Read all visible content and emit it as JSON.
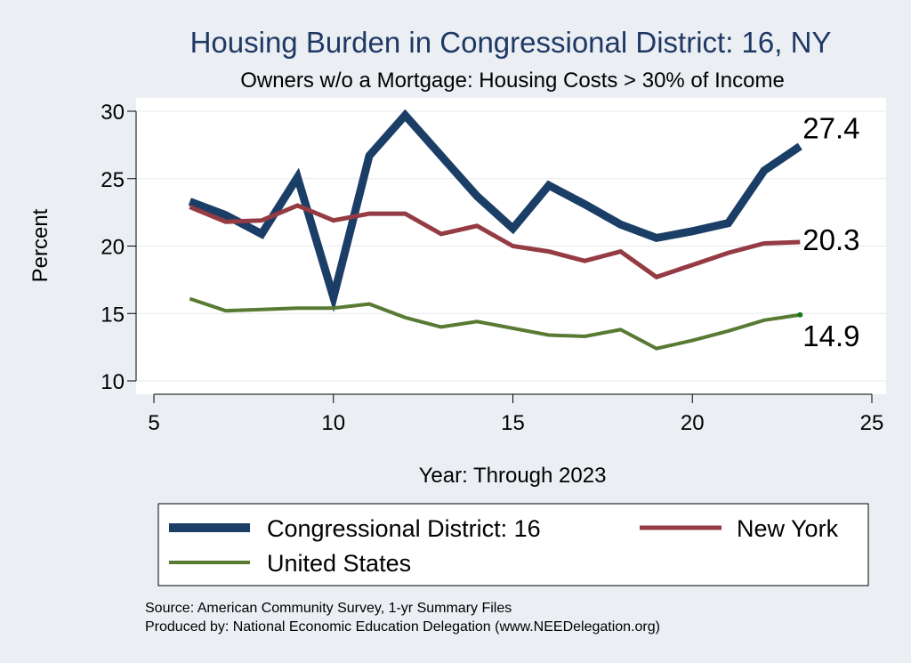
{
  "chart_data": {
    "type": "line",
    "title": "Housing Burden in Congressional District:  16, NY",
    "subtitle": "Owners w/o a Mortgage: Housing Costs > 30% of Income",
    "xlabel": "Year: Through 2023",
    "ylabel": "Percent",
    "xlim": [
      5,
      25
    ],
    "ylim": [
      10,
      30
    ],
    "xticks": [
      5,
      10,
      15,
      20,
      25
    ],
    "yticks": [
      10,
      15,
      20,
      25,
      30
    ],
    "grid": true,
    "legend_position": "bottom",
    "series": [
      {
        "name": "Congressional District:  16",
        "color": "#1b3e66",
        "x": [
          6,
          7,
          8,
          9,
          10,
          11,
          12,
          13,
          14,
          15,
          16,
          17,
          18,
          19,
          20,
          21,
          22,
          23
        ],
        "values": [
          23.3,
          22.3,
          20.9,
          25.1,
          16.2,
          26.7,
          29.7,
          26.7,
          23.7,
          21.3,
          24.5,
          23.1,
          21.6,
          20.6,
          21.1,
          21.7,
          25.6,
          27.4
        ],
        "end_label": "27.4"
      },
      {
        "name": "New York",
        "color": "#953b43",
        "x": [
          6,
          7,
          8,
          9,
          10,
          11,
          12,
          13,
          14,
          15,
          16,
          17,
          18,
          19,
          20,
          21,
          22,
          23
        ],
        "values": [
          22.9,
          21.8,
          21.9,
          23.0,
          21.9,
          22.4,
          22.4,
          20.9,
          21.5,
          20.0,
          19.6,
          18.9,
          19.6,
          17.7,
          18.6,
          19.5,
          20.2,
          20.3
        ],
        "end_label": "20.3"
      },
      {
        "name": "United States",
        "color": "#587a33",
        "x": [
          6,
          7,
          8,
          9,
          10,
          11,
          12,
          13,
          14,
          15,
          16,
          17,
          18,
          19,
          20,
          21,
          22,
          23
        ],
        "values": [
          16.1,
          15.2,
          15.3,
          15.4,
          15.4,
          15.7,
          14.7,
          14.0,
          14.4,
          13.9,
          13.4,
          13.3,
          13.8,
          12.4,
          13.0,
          13.7,
          14.5,
          14.9
        ],
        "end_label": "14.9"
      }
    ]
  },
  "footer": {
    "source": "Source: American Community Survey, 1-yr Summary Files",
    "produced_by": "Produced by: National Economic Education Delegation (www.NEEDelegation.org)"
  }
}
